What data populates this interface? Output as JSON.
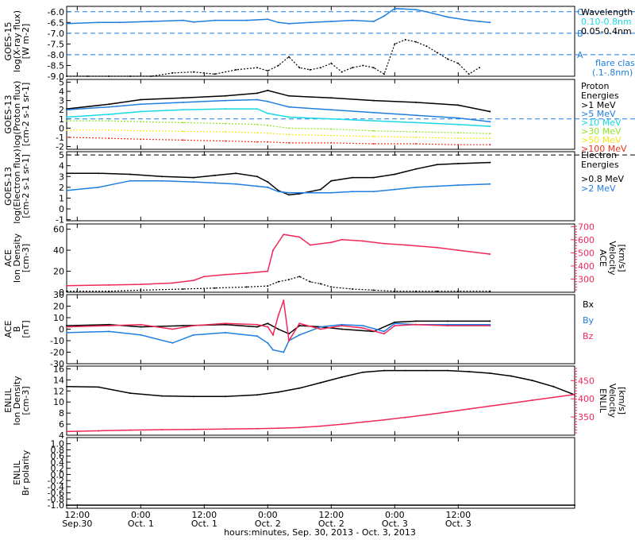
{
  "colors": {
    "black": "#000000",
    "blue": "#1f7fe0",
    "cyan": "#19d9e6",
    "green": "#8ee52a",
    "yellow": "#f2e81f",
    "orange": "#ff8c00",
    "red": "#e8321e",
    "pink": "#f0285a",
    "gridline": "#1f7fe0"
  },
  "xaxis": {
    "title": "hours:minutes, Sep. 30, 2013 - Oct. 3, 2013",
    "range_hours": [
      -14,
      82
    ],
    "ticks": [
      {
        "h": -12,
        "time": "12:00",
        "date": "Sep.30"
      },
      {
        "h": 0,
        "time": "0:00",
        "date": "Oct. 1"
      },
      {
        "h": 12,
        "time": "12:00",
        "date": "Oct. 1"
      },
      {
        "h": 24,
        "time": "0:00",
        "date": "Oct. 2"
      },
      {
        "h": 36,
        "time": "12:00",
        "date": "Oct. 2"
      },
      {
        "h": 48,
        "time": "0:00",
        "date": "Oct. 3"
      },
      {
        "h": 60,
        "time": "12:00",
        "date": "Oct. 3"
      }
    ]
  },
  "chart_data": [
    {
      "type": "line",
      "panel": "GOES-15 X-ray",
      "ylabel": [
        "GOES-15",
        "log(X-ray flux)",
        "[W m-2]"
      ],
      "ylim": [
        -9.0,
        -5.75
      ],
      "yticks": [
        "-6.0",
        "-6.5",
        "-7.0",
        "-7.5",
        "-8.0",
        "-8.5",
        "-9.0"
      ],
      "ytick_values": [
        -6.0,
        -6.5,
        -7.0,
        -7.5,
        -8.0,
        -8.5,
        -9.0
      ],
      "reference_lines": [
        {
          "y": -6.0,
          "label": "C"
        },
        {
          "y": -7.0,
          "label": "B"
        },
        {
          "y": -8.0,
          "label": "A"
        }
      ],
      "legend": {
        "title": "Wavelength",
        "entries": [
          "0.10-0.8nm",
          "0.05-0.4nm"
        ],
        "note": [
          "flare class",
          "(.1-.8nm)"
        ]
      },
      "series": [
        {
          "name": "0.10-0.8nm",
          "color": "blue",
          "x": [
            -14,
            -8,
            -4,
            2,
            8,
            10,
            14,
            20,
            24,
            26,
            28,
            32,
            36,
            40,
            44,
            46,
            48,
            52,
            54,
            58,
            62,
            64,
            66
          ],
          "y": [
            -6.55,
            -6.5,
            -6.5,
            -6.45,
            -6.4,
            -6.48,
            -6.4,
            -6.4,
            -6.35,
            -6.5,
            -6.55,
            -6.5,
            -6.45,
            -6.4,
            -6.45,
            -6.2,
            -5.85,
            -5.9,
            -6.0,
            -6.25,
            -6.4,
            -6.45,
            -6.5
          ]
        },
        {
          "name": "0.05-0.4nm",
          "color": "black",
          "x": [
            -14,
            -10,
            -6,
            -2,
            2,
            6,
            10,
            14,
            18,
            22,
            24,
            26,
            28,
            30,
            32,
            34,
            36,
            38,
            40,
            42,
            44,
            46,
            48,
            50,
            52,
            54,
            56,
            58,
            60,
            62,
            64
          ],
          "y": [
            -9.0,
            -9.0,
            -9.0,
            -9.0,
            -9.0,
            -8.85,
            -8.8,
            -8.9,
            -8.7,
            -8.6,
            -8.75,
            -8.5,
            -8.1,
            -8.6,
            -8.7,
            -8.6,
            -8.4,
            -8.8,
            -8.6,
            -8.5,
            -8.6,
            -8.9,
            -7.5,
            -7.3,
            -7.4,
            -7.6,
            -7.9,
            -8.2,
            -8.4,
            -8.9,
            -8.6
          ]
        }
      ]
    },
    {
      "type": "line",
      "panel": "GOES-13 Proton",
      "ylabel": [
        "GOES-13",
        "log(Proton flux)",
        "[cm-2 s-1 sr-1]"
      ],
      "ylim": [
        -2.3,
        5.3
      ],
      "yticks": [
        "5",
        "4",
        "3",
        "2",
        "1",
        "0",
        "-1",
        "-2"
      ],
      "ytick_values": [
        5,
        4,
        3,
        2,
        1,
        0,
        -1,
        -2
      ],
      "reference_lines": [
        {
          "y": 1.0,
          "label": ""
        }
      ],
      "legend": {
        "title": [
          "Proton",
          "Energies"
        ],
        "entries": [
          ">1 MeV",
          ">5 MeV",
          ">10 MeV",
          ">30 MeV",
          ">50 MeV",
          ">100 MeV"
        ]
      },
      "series": [
        {
          "name": ">1 MeV",
          "color": "black",
          "x": [
            -14,
            -6,
            0,
            8,
            16,
            22,
            24,
            28,
            36,
            44,
            52,
            60,
            66
          ],
          "y": [
            2.1,
            2.6,
            3.1,
            3.3,
            3.5,
            3.8,
            4.1,
            3.5,
            3.3,
            3.0,
            2.8,
            2.5,
            1.8
          ]
        },
        {
          "name": ">5 MeV",
          "color": "blue",
          "x": [
            -14,
            -6,
            0,
            8,
            16,
            22,
            24,
            28,
            36,
            44,
            52,
            60,
            66
          ],
          "y": [
            2.0,
            2.3,
            2.6,
            2.8,
            3.0,
            3.1,
            2.9,
            2.3,
            2.0,
            1.7,
            1.4,
            1.1,
            0.7
          ]
        },
        {
          "name": ">10 MeV",
          "color": "cyan",
          "x": [
            -14,
            -6,
            0,
            8,
            16,
            22,
            24,
            28,
            36,
            44,
            52,
            60,
            66
          ],
          "y": [
            1.2,
            1.5,
            1.8,
            2.0,
            2.1,
            2.1,
            1.6,
            1.2,
            1.0,
            0.8,
            0.6,
            0.4,
            0.2
          ]
        },
        {
          "name": ">30 MeV",
          "color": "green",
          "x": [
            -14,
            -6,
            0,
            8,
            16,
            22,
            24,
            28,
            36,
            44,
            52,
            60,
            66
          ],
          "y": [
            0.8,
            0.8,
            0.7,
            0.6,
            0.5,
            0.4,
            0.3,
            0.0,
            -0.1,
            -0.3,
            -0.4,
            -0.5,
            -0.6
          ]
        },
        {
          "name": ">50 MeV",
          "color": "yellow",
          "x": [
            -14,
            -6,
            0,
            8,
            16,
            22,
            24,
            28,
            36,
            44,
            52,
            60,
            66
          ],
          "y": [
            -0.2,
            -0.2,
            -0.3,
            -0.35,
            -0.4,
            -0.5,
            -0.55,
            -0.7,
            -0.8,
            -0.9,
            -1.0,
            -1.1,
            -1.1
          ]
        },
        {
          "name": ">100 MeV",
          "color": "red",
          "x": [
            -14,
            -6,
            0,
            8,
            16,
            22,
            24,
            28,
            36,
            44,
            52,
            60,
            66
          ],
          "y": [
            -1.0,
            -1.1,
            -1.2,
            -1.3,
            -1.4,
            -1.5,
            -1.5,
            -1.6,
            -1.6,
            -1.7,
            -1.7,
            -1.8,
            -1.8
          ]
        }
      ]
    },
    {
      "type": "line",
      "panel": "GOES-13 Electron",
      "ylabel": [
        "GOES-13",
        "log(Electron flux)",
        "[cm-2 s-1 sr-1]"
      ],
      "ylim": [
        -1.1,
        5.3
      ],
      "yticks": [
        "5",
        "4",
        "3",
        "2",
        "1",
        "0",
        "-1"
      ],
      "ytick_values": [
        5,
        4,
        3,
        2,
        1,
        0,
        -1
      ],
      "reference_lines": [
        {
          "y": 5.0,
          "label": ""
        }
      ],
      "legend": {
        "title": [
          "Electron",
          "Energies"
        ],
        "entries": [
          ">0.8 MeV",
          ">2 MeV"
        ]
      },
      "series": [
        {
          "name": ">0.8 MeV",
          "color": "black",
          "x": [
            -14,
            -8,
            -2,
            4,
            10,
            14,
            18,
            22,
            24,
            26,
            28,
            30,
            34,
            36,
            40,
            44,
            48,
            52,
            56,
            60,
            66
          ],
          "y": [
            3.3,
            3.3,
            3.2,
            3.0,
            2.9,
            3.1,
            3.3,
            3.0,
            2.5,
            1.7,
            1.3,
            1.4,
            1.8,
            2.6,
            2.9,
            2.9,
            3.2,
            3.7,
            4.1,
            4.2,
            4.3
          ]
        },
        {
          "name": ">2 MeV",
          "color": "blue",
          "x": [
            -14,
            -8,
            -2,
            4,
            10,
            14,
            18,
            22,
            24,
            26,
            28,
            30,
            34,
            36,
            40,
            44,
            48,
            52,
            56,
            60,
            66
          ],
          "y": [
            1.7,
            2.0,
            2.6,
            2.6,
            2.5,
            2.4,
            2.3,
            2.1,
            2.0,
            1.6,
            1.5,
            1.5,
            1.5,
            1.5,
            1.6,
            1.6,
            1.8,
            2.0,
            2.1,
            2.2,
            2.3
          ]
        }
      ]
    },
    {
      "type": "line",
      "panel": "ACE Ion Density / Velocity",
      "ylabel": [
        "ACE",
        "Ion Density",
        "[cm-3]"
      ],
      "ylim": [
        0,
        65
      ],
      "yticks": [
        "60",
        "40",
        "20",
        "0"
      ],
      "ytick_values": [
        60,
        40,
        20,
        0
      ],
      "y2label": [
        "ACE",
        "Velocity",
        "[km/s]"
      ],
      "y2lim": [
        200,
        720
      ],
      "y2ticks": [
        "700",
        "600",
        "500",
        "400",
        "300"
      ],
      "y2tick_values": [
        700,
        600,
        500,
        400,
        300
      ],
      "series": [
        {
          "name": "Ion Density",
          "color": "black",
          "axis": "left",
          "x": [
            -14,
            -6,
            0,
            8,
            14,
            20,
            24,
            26,
            28,
            30,
            32,
            34,
            36,
            40,
            44,
            48,
            52,
            56,
            60,
            66
          ],
          "y": [
            1,
            1,
            2,
            3,
            4,
            5,
            6,
            10,
            12,
            15,
            10,
            8,
            5,
            3,
            2,
            1,
            1,
            1,
            1,
            1
          ]
        },
        {
          "name": "Velocity",
          "color": "pink",
          "axis": "right",
          "x": [
            -14,
            -6,
            0,
            6,
            10,
            12,
            16,
            20,
            24,
            25,
            27,
            30,
            32,
            36,
            38,
            42,
            46,
            50,
            56,
            60,
            66
          ],
          "y": [
            250,
            255,
            260,
            270,
            290,
            320,
            335,
            345,
            360,
            520,
            640,
            620,
            560,
            580,
            600,
            590,
            570,
            560,
            540,
            520,
            490
          ]
        }
      ]
    },
    {
      "type": "line",
      "panel": "ACE Magnetic Field",
      "ylabel": [
        "ACE",
        "B",
        "[nT]"
      ],
      "ylim": [
        -30,
        30
      ],
      "yticks": [
        "30",
        "20",
        "10",
        "0",
        "-10",
        "-20",
        "-30"
      ],
      "ytick_values": [
        30,
        20,
        10,
        0,
        -10,
        -20,
        -30
      ],
      "legend": {
        "entries": [
          "Bx",
          "By",
          "Bz"
        ]
      },
      "series": [
        {
          "name": "Bx",
          "color": "black",
          "x": [
            -14,
            -6,
            0,
            8,
            16,
            22,
            24,
            26,
            28,
            30,
            34,
            38,
            44,
            48,
            52,
            58,
            66
          ],
          "y": [
            3,
            4,
            2,
            3,
            4,
            2,
            5,
            0,
            -4,
            3,
            2,
            0,
            -2,
            6,
            7,
            7,
            7
          ]
        },
        {
          "name": "By",
          "color": "blue",
          "x": [
            -14,
            -6,
            0,
            6,
            10,
            16,
            22,
            24,
            25,
            27,
            28,
            30,
            34,
            38,
            42,
            46,
            48,
            52,
            58,
            66
          ],
          "y": [
            -3,
            -2,
            -5,
            -12,
            -5,
            -3,
            -6,
            -12,
            -18,
            -20,
            -10,
            -5,
            2,
            4,
            3,
            -2,
            5,
            4,
            4,
            4
          ]
        },
        {
          "name": "Bz",
          "color": "pink",
          "x": [
            -14,
            -6,
            0,
            6,
            10,
            16,
            22,
            24,
            25,
            26,
            27,
            28,
            30,
            34,
            38,
            42,
            46,
            48,
            52,
            58,
            66
          ],
          "y": [
            2,
            3,
            4,
            0,
            3,
            5,
            4,
            2,
            -5,
            12,
            25,
            -10,
            5,
            0,
            3,
            1,
            -4,
            3,
            4,
            3,
            3
          ]
        }
      ]
    },
    {
      "type": "line",
      "panel": "ENLIL Ion Density / Velocity",
      "ylabel": [
        "ENLIL",
        "Ion Density",
        "[cm-3]"
      ],
      "ylim": [
        4,
        16.5
      ],
      "yticks": [
        "16",
        "14",
        "12",
        "10",
        "8",
        "6",
        "4"
      ],
      "ytick_values": [
        16,
        14,
        12,
        10,
        8,
        6,
        4
      ],
      "y2label": [
        "ENLIL",
        "Velocity",
        "[km/s]"
      ],
      "y2lim": [
        300,
        490
      ],
      "y2ticks": [
        "450",
        "400",
        "350"
      ],
      "y2tick_values": [
        450,
        400,
        350
      ],
      "series": [
        {
          "name": "Ion Density",
          "color": "black",
          "axis": "left",
          "x": [
            -14,
            -8,
            -2,
            4,
            10,
            16,
            22,
            26,
            30,
            34,
            38,
            42,
            46,
            50,
            54,
            58,
            62,
            66,
            70,
            74,
            78,
            82
          ],
          "y": [
            12.8,
            12.7,
            11.6,
            11.1,
            11.0,
            11.0,
            11.3,
            11.8,
            12.5,
            13.5,
            14.5,
            15.4,
            15.7,
            15.7,
            15.7,
            15.7,
            15.5,
            15.2,
            14.7,
            13.9,
            12.8,
            11.3
          ]
        },
        {
          "name": "Velocity",
          "color": "pink",
          "axis": "right",
          "x": [
            -14,
            -8,
            -2,
            4,
            10,
            16,
            22,
            26,
            30,
            34,
            38,
            42,
            46,
            50,
            54,
            58,
            62,
            66,
            70,
            74,
            78,
            82
          ],
          "y": [
            310,
            312,
            314,
            315,
            316,
            317,
            318,
            319,
            321,
            325,
            330,
            336,
            342,
            349,
            356,
            364,
            372,
            380,
            388,
            396,
            404,
            412
          ]
        }
      ]
    },
    {
      "type": "line",
      "panel": "ENLIL Br Polarity",
      "ylabel": [
        "ENLIL",
        "Br polarity"
      ],
      "ylim": [
        -1.1,
        1.2
      ],
      "yticks": [
        "1.0",
        "0.8",
        "0.6",
        "0.4",
        "0.2",
        "0.0",
        "-0.2",
        "-0.4",
        "-0.6",
        "-0.8",
        "-1.0"
      ],
      "ytick_values": [
        1.0,
        0.8,
        0.6,
        0.4,
        0.2,
        0.0,
        -0.2,
        -0.4,
        -0.6,
        -0.8,
        -1.0
      ],
      "series": [
        {
          "name": "Br polarity",
          "color": "black",
          "x": [
            -14,
            82
          ],
          "y": [
            -1.0,
            -1.0
          ]
        }
      ]
    }
  ]
}
